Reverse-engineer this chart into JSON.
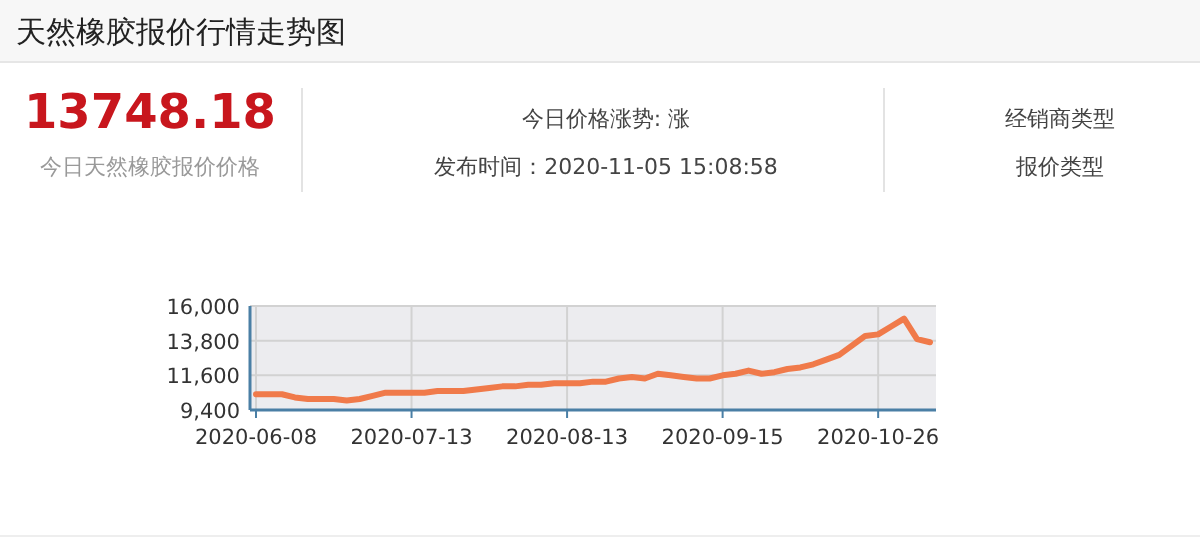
{
  "chart_data": {
    "type": "line",
    "title": "天然橡胶报价行情走势图",
    "annotations": [
      "13748.18",
      "今日天然橡胶报价价格",
      "今日价格涨势: 涨",
      "发布时间：2020-11-05 15:08:58",
      "经销商类型",
      "报价类型"
    ],
    "categories": [
      "2020-06-08",
      null,
      null,
      null,
      null,
      null,
      null,
      null,
      null,
      null,
      null,
      null,
      "2020-07-13",
      null,
      null,
      null,
      null,
      null,
      null,
      null,
      null,
      null,
      null,
      null,
      "2020-08-13",
      null,
      null,
      null,
      null,
      null,
      null,
      null,
      null,
      null,
      null,
      null,
      "2020-09-15",
      null,
      null,
      null,
      null,
      null,
      null,
      null,
      null,
      null,
      null,
      null,
      "2020-10-26",
      null,
      null,
      null,
      null
    ],
    "values": [
      10400,
      10400,
      10400,
      10200,
      10100,
      10100,
      10100,
      10000,
      10100,
      10300,
      10500,
      10500,
      10500,
      10500,
      10600,
      10600,
      10600,
      10700,
      10800,
      10900,
      10900,
      11000,
      11000,
      11100,
      11100,
      11100,
      11200,
      11200,
      11400,
      11500,
      11400,
      11700,
      11600,
      11500,
      11400,
      11400,
      11600,
      11700,
      11900,
      11700,
      11800,
      12000,
      12100,
      12300,
      12600,
      12900,
      13500,
      14100,
      14200,
      14700,
      15200,
      13900,
      13700
    ],
    "color": "#f07a4a",
    "ylim": [
      9400,
      16000
    ],
    "yticks": [
      {
        "value": 9400,
        "label": "9,400"
      },
      {
        "value": 11600,
        "label": "11,600"
      },
      {
        "value": 13800,
        "label": "13,800"
      },
      {
        "value": 16000,
        "label": "16,000"
      }
    ],
    "grid": true
  }
}
